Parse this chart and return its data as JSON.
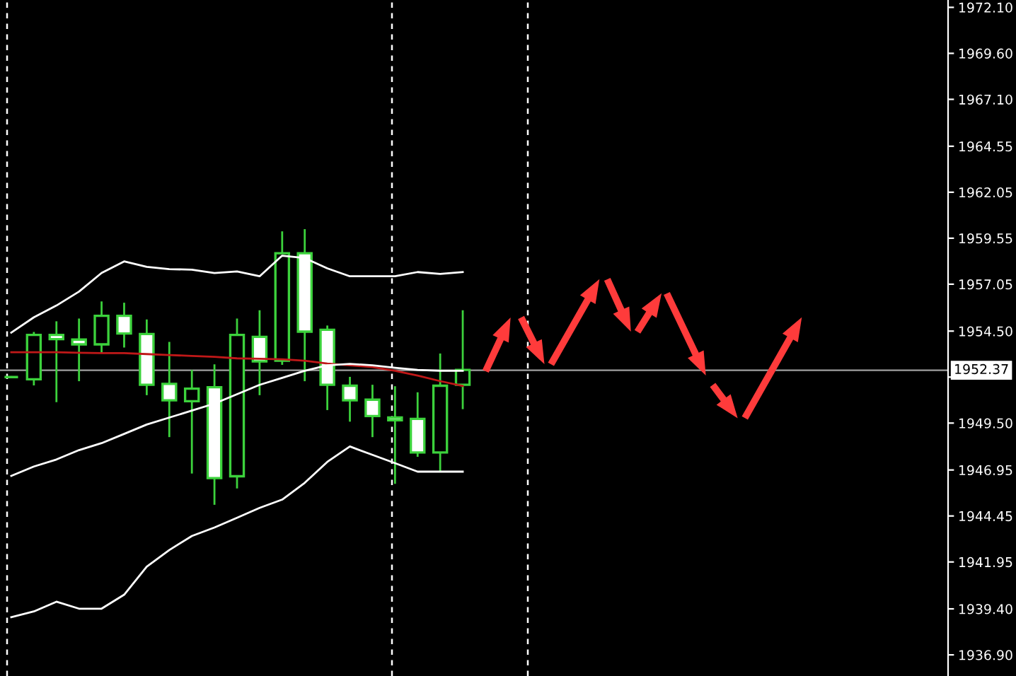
{
  "chart_data": {
    "type": "candlestick",
    "categories": [
      null,
      null,
      null,
      null,
      null,
      null,
      null,
      null,
      null,
      null,
      null,
      null,
      null,
      null,
      null,
      null,
      null,
      null,
      null,
      null,
      null,
      null,
      null,
      null,
      null,
      null,
      null,
      null,
      null,
      null,
      null,
      null,
      null,
      null,
      null,
      null,
      null,
      null,
      null,
      null,
      null,
      null
    ],
    "ohlc": [
      [
        1952.0,
        1952.0,
        1952.0,
        1952.0
      ],
      [
        1951.88,
        1954.4,
        1951.6,
        1954.29
      ],
      [
        1954.29,
        1954.98,
        1950.69,
        1954.06
      ],
      [
        1954.04,
        1955.13,
        1951.83,
        1953.78
      ],
      [
        1953.78,
        1956.06,
        1953.35,
        1955.33
      ],
      [
        1955.33,
        1955.99,
        1953.66,
        1954.37
      ],
      [
        1954.34,
        1955.08,
        1951.07,
        1951.58
      ],
      [
        1951.63,
        1953.86,
        1948.79,
        1950.74
      ],
      [
        1950.69,
        1952.34,
        1946.81,
        1951.37
      ],
      [
        1951.45,
        1952.64,
        1945.11,
        1946.51
      ],
      [
        1946.61,
        1955.13,
        1946.0,
        1954.29
      ],
      [
        1954.19,
        1955.58,
        1951.07,
        1952.85
      ],
      [
        1952.89,
        1959.87,
        1952.72,
        1958.73
      ],
      [
        1958.73,
        1959.99,
        1951.83,
        1954.47
      ],
      [
        1954.57,
        1954.75,
        1950.26,
        1951.58
      ],
      [
        1951.53,
        1951.96,
        1949.63,
        1950.74
      ],
      [
        1950.77,
        1951.53,
        1948.79,
        1949.88
      ],
      [
        1949.8,
        1951.45,
        1946.25,
        1949.65
      ],
      [
        1949.73,
        1951.12,
        1947.72,
        1947.9
      ],
      [
        1947.9,
        1953.23,
        1946.94,
        1951.53
      ],
      [
        1951.58,
        1955.58,
        1950.31,
        1952.39
      ],
      null,
      null,
      null,
      null,
      null,
      null,
      null,
      null,
      null,
      null,
      null,
      null,
      null,
      null,
      null,
      null,
      null,
      null,
      null,
      null,
      null
    ],
    "color": "#3cd23c",
    "colors": [
      "#3cd23c",
      "#000000",
      "#ffffff",
      "#ffffff",
      "#000000",
      "#ffffff",
      "#ffffff",
      "#ffffff",
      "#000000",
      "#ffffff",
      "#000000",
      "#ffffff",
      "#000000",
      "#ffffff",
      "#ffffff",
      "#ffffff",
      "#ffffff",
      "#ffffff",
      "#ffffff",
      "#000000",
      "#000000",
      null,
      null,
      null,
      null,
      null,
      null,
      null,
      null,
      null,
      null,
      null,
      null,
      null,
      null,
      null,
      null,
      null,
      null,
      null,
      null,
      null
    ],
    "series": [
      {
        "type": "line",
        "color": "#ffffff",
        "values": [
          1954.42,
          1955.25,
          1955.89,
          1956.65,
          1957.66,
          1958.29,
          1957.99,
          1957.87,
          1957.84,
          1957.66,
          1957.74,
          1957.48,
          1958.6,
          1958.47,
          1957.91,
          1957.48,
          1957.48,
          1957.48,
          1957.71,
          1957.61,
          1957.71,
          null,
          null,
          null,
          null,
          null,
          null,
          null,
          null,
          null,
          null,
          null,
          null,
          null,
          null,
          null,
          null,
          null,
          null,
          null,
          null,
          null
        ]
      },
      {
        "type": "line",
        "color": "#c01818",
        "values": [
          1953.35,
          1953.35,
          1953.35,
          1953.32,
          1953.3,
          1953.3,
          1953.25,
          1953.2,
          1953.15,
          1953.1,
          1953.02,
          1953.0,
          1952.97,
          1952.89,
          1952.74,
          1952.64,
          1952.54,
          1952.34,
          1952.08,
          1951.78,
          1951.52,
          null,
          null,
          null,
          null,
          null,
          null,
          null,
          null,
          null,
          null,
          null,
          null,
          null,
          null,
          null,
          null,
          null,
          null,
          null,
          null,
          null
        ]
      },
      {
        "type": "line",
        "color": "#ffffff",
        "values": [
          1946.63,
          1947.14,
          1947.52,
          1948.03,
          1948.41,
          1948.91,
          1949.42,
          1949.8,
          1950.18,
          1950.56,
          1951.07,
          1951.58,
          1951.96,
          1952.34,
          1952.64,
          1952.72,
          1952.64,
          1952.51,
          1952.39,
          1952.34,
          1952.34,
          null,
          null,
          null,
          null,
          null,
          null,
          null,
          null,
          null,
          null,
          null,
          null,
          null,
          null,
          null,
          null,
          null,
          null,
          null,
          null,
          null
        ]
      },
      {
        "type": "line",
        "color": "#ffffff",
        "values": [
          1938.95,
          1939.26,
          1939.79,
          1939.41,
          1939.41,
          1940.17,
          1941.69,
          1942.6,
          1943.36,
          1943.82,
          1944.35,
          1944.89,
          1945.34,
          1946.25,
          1947.39,
          1948.23,
          1947.77,
          1947.32,
          1946.86,
          1946.86,
          1946.86,
          null,
          null,
          null,
          null,
          null,
          null,
          null,
          null,
          null,
          null,
          null,
          null,
          null,
          null,
          null,
          null,
          null,
          null,
          null,
          null,
          null
        ]
      }
    ],
    "ylim": [
      1935.75,
      1972.5
    ],
    "yticks": [
      {
        "value": 1936.9,
        "label": "1936.90"
      },
      {
        "value": 1939.4,
        "label": "1939.40"
      },
      1941.95,
      1944.45,
      1946.95,
      {
        "value": 1949.5,
        "label": "1949.50"
      },
      {
        "value": 1952.0,
        "label": null
      },
      {
        "value": 1954.5,
        "label": "1954.50"
      },
      1957.05,
      1959.55,
      1962.05,
      1964.55,
      {
        "value": 1967.1,
        "label": "1967.10"
      },
      {
        "value": 1969.6,
        "label": "1969.60"
      },
      {
        "value": 1972.1,
        "label": "1972.10"
      }
    ],
    "ref_lines": [
      {
        "axis": "y",
        "value": 1952.37,
        "label": "1952.37",
        "color": "#a0a0a0",
        "line_style": "solid"
      }
    ],
    "tick_labels": "y"
  }
}
